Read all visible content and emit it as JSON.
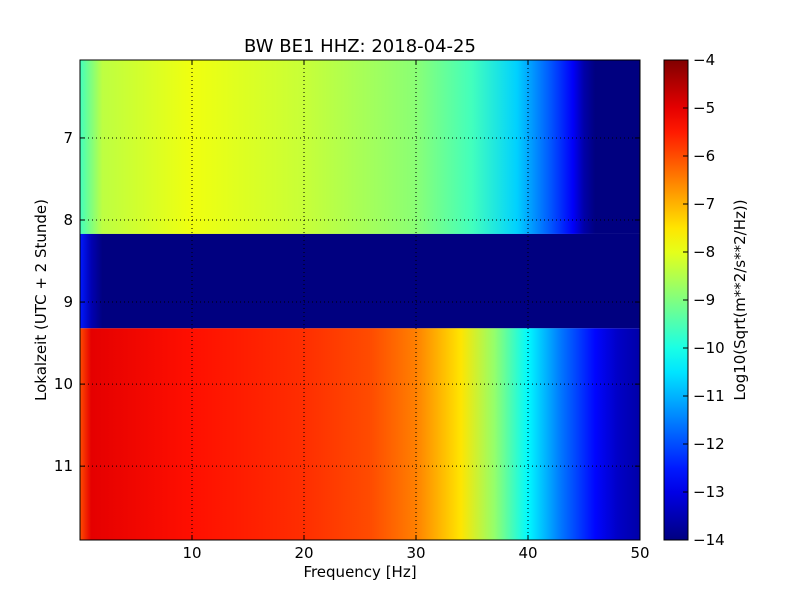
{
  "chart_data": {
    "type": "heatmap",
    "title": "BW BE1 HHZ: 2018-04-25",
    "xlabel": "Frequency [Hz]",
    "ylabel": "Lokalzeit (UTC + 2 Stunde)",
    "xlim": [
      0,
      50
    ],
    "ylim": [
      11.9,
      6.05
    ],
    "x_ticks": [
      {
        "value": 10,
        "label": "10"
      },
      {
        "value": 20,
        "label": "20"
      },
      {
        "value": 30,
        "label": "30"
      },
      {
        "value": 40,
        "label": "40"
      },
      {
        "value": 50,
        "label": "50"
      }
    ],
    "y_ticks": [
      {
        "value": 7,
        "label": "7"
      },
      {
        "value": 8,
        "label": "8"
      },
      {
        "value": 9,
        "label": "9"
      },
      {
        "value": 10,
        "label": "10"
      },
      {
        "value": 11,
        "label": "11"
      }
    ],
    "grid": true,
    "colormap": "jet",
    "colorbar": {
      "label": "Log10(Sqrt(m**2/s**2/Hz))",
      "range": [
        -14,
        -4
      ],
      "ticks": [
        {
          "value": -4,
          "label": "−4"
        },
        {
          "value": -5,
          "label": "−5"
        },
        {
          "value": -6,
          "label": "−6"
        },
        {
          "value": -7,
          "label": "−7"
        },
        {
          "value": -8,
          "label": "−8"
        },
        {
          "value": -9,
          "label": "−9"
        },
        {
          "value": -10,
          "label": "−10"
        },
        {
          "value": -11,
          "label": "−11"
        },
        {
          "value": -12,
          "label": "−12"
        },
        {
          "value": -13,
          "label": "−13"
        },
        {
          "value": -14,
          "label": "−14"
        }
      ]
    },
    "segments": [
      {
        "time_range": [
          6.05,
          8.17
        ],
        "profile": [
          [
            0,
            -9.6
          ],
          [
            2,
            -8.4
          ],
          [
            10,
            -7.9
          ],
          [
            20,
            -8.3
          ],
          [
            30,
            -8.9
          ],
          [
            35,
            -9.6
          ],
          [
            39,
            -10.7
          ],
          [
            42,
            -11.9
          ],
          [
            44,
            -12.8
          ],
          [
            45,
            -13.6
          ],
          [
            46,
            -14
          ],
          [
            50,
            -14
          ]
        ]
      },
      {
        "time_range": [
          8.17,
          9.32
        ],
        "profile": [
          [
            0,
            -12.5
          ],
          [
            1,
            -13.5
          ],
          [
            2,
            -14
          ],
          [
            50,
            -14
          ]
        ]
      },
      {
        "time_range": [
          9.32,
          11.9
        ],
        "profile": [
          [
            0,
            -6.0
          ],
          [
            1,
            -5.0
          ],
          [
            10,
            -5.4
          ],
          [
            20,
            -5.7
          ],
          [
            26,
            -6.0
          ],
          [
            30,
            -6.5
          ],
          [
            34,
            -7.5
          ],
          [
            37,
            -8.8
          ],
          [
            40,
            -10.3
          ],
          [
            43,
            -11.6
          ],
          [
            46,
            -12.7
          ],
          [
            48,
            -13.3
          ],
          [
            50,
            -13.6
          ]
        ]
      }
    ]
  }
}
